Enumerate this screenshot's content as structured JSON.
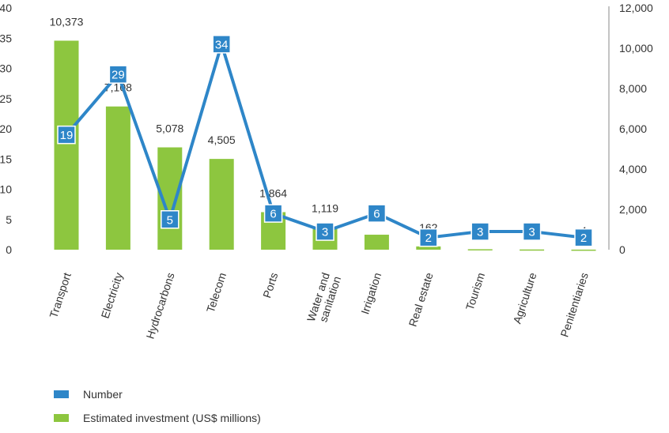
{
  "chart_data": {
    "type": "bar",
    "categories": [
      "Transport",
      "Electricity",
      "Hydrocarbons",
      "Telecom",
      "Ports",
      "Water and sanitation",
      "Irrigation",
      "Real estate",
      "Tourism",
      "Agriculture",
      "Penitentiaries"
    ],
    "category_lines": [
      [
        "Transport"
      ],
      [
        "Electricity"
      ],
      [
        "Hydrocarbons"
      ],
      [
        "Telecom"
      ],
      [
        "Ports"
      ],
      [
        "Water and",
        "sanitation"
      ],
      [
        "Irrigation"
      ],
      [
        "Real estate"
      ],
      [
        "Tourism"
      ],
      [
        "Agriculture"
      ],
      [
        "Penitentiaries"
      ]
    ],
    "series": [
      {
        "name": "Estimated investment (US$ millions)",
        "type": "bar",
        "axis": "right",
        "color": "#8dc63f",
        "values": [
          10373,
          7108,
          5078,
          4505,
          1864,
          1119,
          744,
          162,
          23,
          11,
          4
        ],
        "labels": [
          "10,373",
          "7,108",
          "5,078",
          "4,505",
          "1,864",
          "1,119",
          "744",
          "162",
          "23",
          "11",
          "4"
        ]
      },
      {
        "name": "Number",
        "type": "line",
        "axis": "left",
        "color": "#2e86c8",
        "values": [
          19,
          29,
          5,
          34,
          6,
          3,
          6,
          2,
          3,
          3,
          2
        ],
        "labels": [
          "19",
          "29",
          "5",
          "34",
          "6",
          "3",
          "6",
          "2",
          "3",
          "3",
          "2"
        ]
      }
    ],
    "left_axis": {
      "ylim": [
        0,
        40
      ],
      "ticks": [
        0,
        5,
        10,
        15,
        20,
        25,
        30,
        35,
        40
      ],
      "tick_labels": [
        "0",
        "5",
        "10",
        "15",
        "20",
        "25",
        "30",
        "35",
        "40"
      ]
    },
    "right_axis": {
      "ylim": [
        0,
        12000
      ],
      "ticks": [
        0,
        2000,
        4000,
        6000,
        8000,
        10000,
        12000
      ],
      "tick_labels": [
        "0",
        "2,000",
        "4,000",
        "6,000",
        "8,000",
        "10,000",
        "12,000"
      ]
    },
    "legend_position": "bottom-left",
    "grid": false
  },
  "legend": {
    "items": [
      {
        "label": "Number",
        "color": "#2e86c8"
      },
      {
        "label": "Estimated investment (US$ millions)",
        "color": "#8dc63f"
      }
    ]
  }
}
